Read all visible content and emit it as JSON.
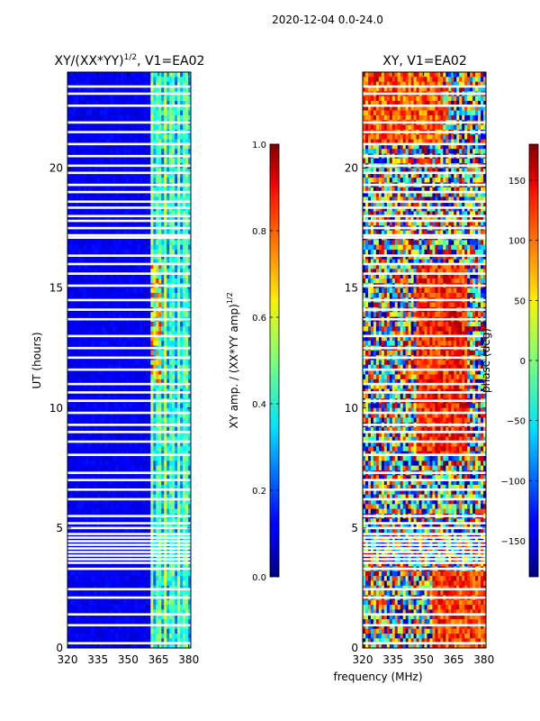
{
  "figure_title": "2020-12-04 0.0-24.0",
  "xlabel_shared": "frequency (MHz)",
  "chart_data": [
    {
      "type": "heatmap",
      "title_main": "XY/(XX*YY)",
      "title_sup": "1/2",
      "title_rest": ", V1=EA02",
      "xlabel": "frequency (MHz)",
      "ylabel": "UT (hours)",
      "xlim": [
        320,
        381
      ],
      "ylim": [
        0,
        24
      ],
      "xticks": [
        320,
        335,
        350,
        365,
        380
      ],
      "yticks": [
        0,
        5,
        10,
        15,
        20
      ],
      "colorbar": {
        "label_main": "XY amp. / (XX*YY amp)",
        "label_sup": "1/2",
        "range": [
          0.0,
          1.0
        ],
        "ticks": [
          "0.0",
          "0.2",
          "0.4",
          "0.6",
          "0.8",
          "1.0"
        ],
        "tick_values": [
          0.0,
          0.2,
          0.4,
          0.6,
          0.8,
          1.0
        ]
      },
      "quiet_band_mhz": [
        320,
        361
      ],
      "active_band_mhz": [
        361,
        381
      ],
      "blank_rows_hours": [
        0.2,
        0.95,
        1.4,
        2.1,
        2.45,
        3.3,
        3.55,
        3.7,
        3.85,
        4.0,
        4.15,
        4.3,
        4.45,
        4.6,
        4.75,
        5.0,
        5.2,
        5.5,
        6.2,
        6.6,
        7.0,
        7.3,
        8.05,
        8.6,
        9.0,
        9.3,
        9.8,
        10.3,
        10.65,
        11.0,
        11.6,
        12.1,
        12.5,
        13.0,
        13.7,
        14.1,
        14.5,
        15.1,
        15.6,
        16.0,
        16.35,
        17.1,
        17.2,
        17.5,
        17.8,
        18.0,
        18.35,
        18.6,
        19.0,
        19.3,
        19.8,
        20.1,
        20.5,
        21.0,
        21.5,
        21.9,
        22.6,
        23.1,
        23.4
      ]
    },
    {
      "type": "heatmap",
      "title": "XY, V1=EA02",
      "xlabel": "frequency (MHz)",
      "ylim": [
        0,
        24
      ],
      "xlim": [
        320,
        381
      ],
      "xticks": [
        320,
        335,
        350,
        365,
        380
      ],
      "yticks": [
        0,
        5,
        10,
        15,
        20
      ],
      "colorbar": {
        "label": "phase (deg)",
        "range": [
          -180,
          180
        ],
        "ticks": [
          "−150",
          "−100",
          "−50",
          "0",
          "50",
          "100",
          "150"
        ],
        "tick_values": [
          -150,
          -100,
          -50,
          0,
          50,
          100,
          150
        ]
      },
      "blank_rows_hours": [
        0.2,
        0.95,
        1.4,
        2.1,
        2.45,
        3.3,
        3.55,
        3.7,
        3.85,
        4.0,
        4.15,
        4.3,
        4.45,
        4.6,
        4.75,
        5.0,
        5.2,
        5.5,
        6.2,
        6.6,
        7.0,
        7.3,
        8.05,
        8.6,
        9.0,
        9.3,
        9.8,
        10.3,
        10.65,
        11.0,
        11.6,
        12.1,
        12.5,
        13.0,
        13.7,
        14.1,
        14.5,
        15.1,
        15.6,
        16.0,
        16.35,
        17.1,
        17.2,
        17.5,
        17.8,
        18.0,
        18.35,
        18.6,
        19.0,
        19.3,
        19.8,
        20.1,
        20.5,
        21.0,
        21.5,
        21.9,
        22.6,
        23.1,
        23.4
      ]
    }
  ]
}
